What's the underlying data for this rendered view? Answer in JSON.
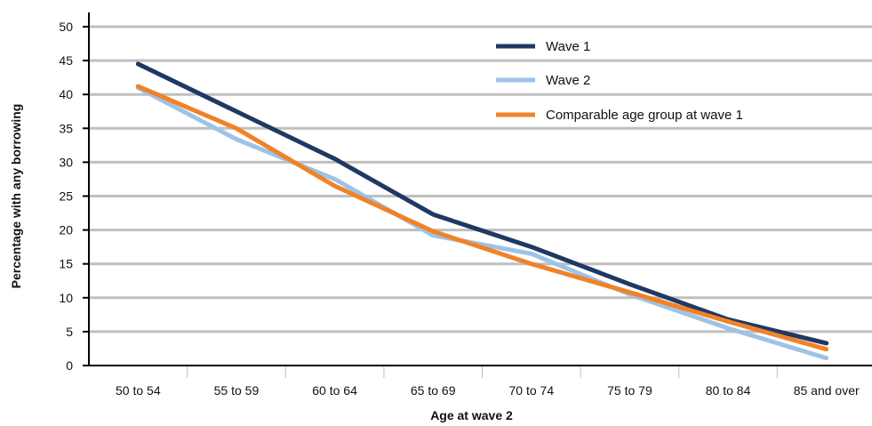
{
  "chart_data": {
    "type": "line",
    "xlabel": "Age at wave 2",
    "ylabel": "Percentage with any borrowing",
    "categories": [
      "50 to 54",
      "55 to 59",
      "60 to 64",
      "65 to 69",
      "70 to 74",
      "75 to 79",
      "80 to 84",
      "85 and over"
    ],
    "ylim": [
      0,
      50
    ],
    "yticks": [
      0,
      5,
      10,
      15,
      20,
      25,
      30,
      35,
      40,
      45,
      50
    ],
    "grid": true,
    "legend_position": "top-right",
    "series": [
      {
        "name": "Wave 1",
        "color": "#1f3864",
        "values": [
          44.5,
          37.5,
          30.5,
          22.3,
          17.5,
          12.0,
          6.8,
          3.3
        ]
      },
      {
        "name": "Wave 2",
        "color": "#9dc3e6",
        "values": [
          41.0,
          33.4,
          27.5,
          19.2,
          16.5,
          10.5,
          5.5,
          1.1
        ]
      },
      {
        "name": "Comparable age group at wave 1",
        "color": "#f08228",
        "values": [
          41.2,
          35.0,
          26.5,
          19.8,
          15.0,
          10.8,
          6.5,
          2.4
        ]
      }
    ]
  }
}
